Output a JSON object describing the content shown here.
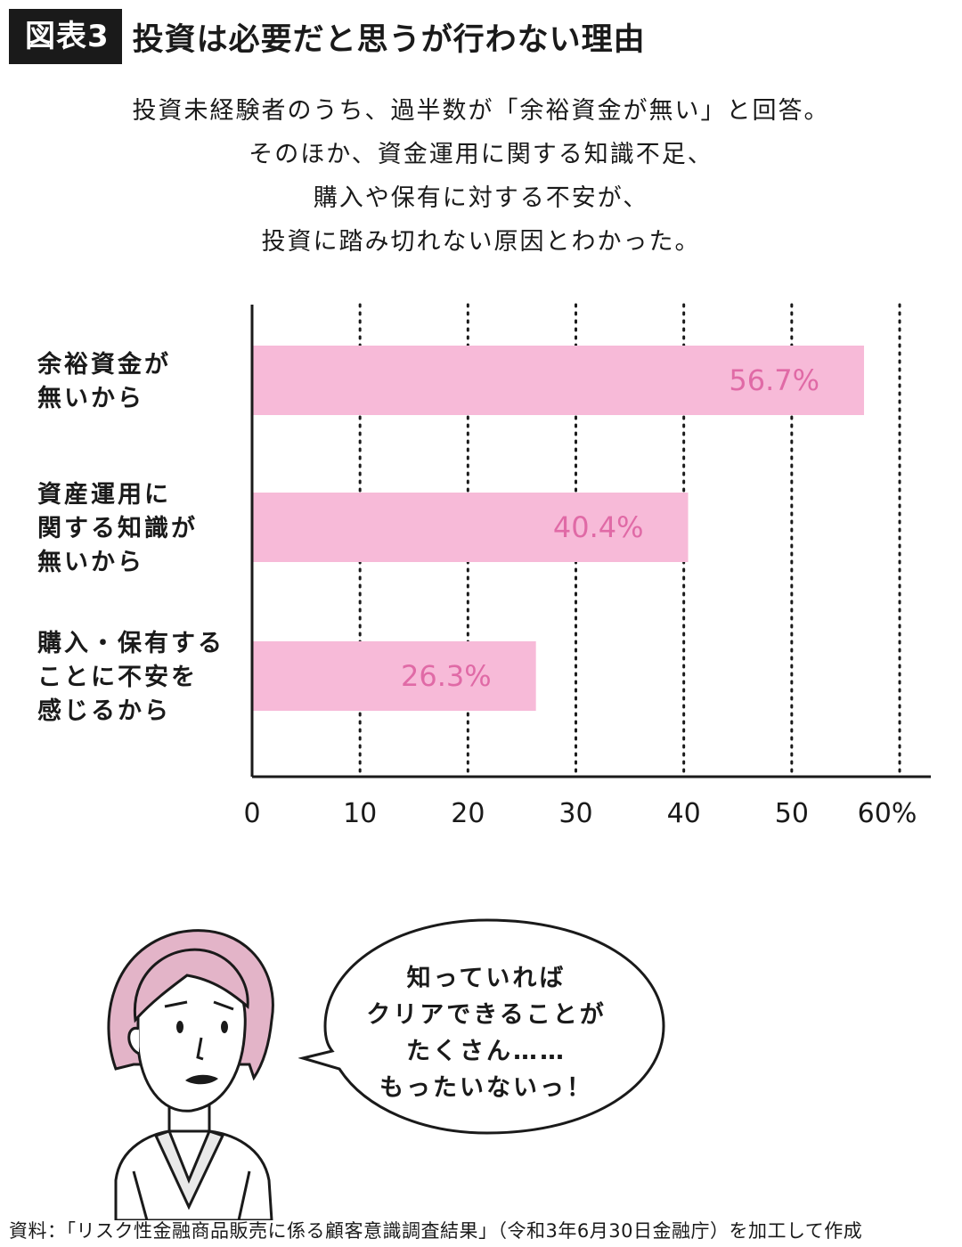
{
  "header": {
    "figure_label": "図表3",
    "title": "投資は必要だと思うが行わない理由"
  },
  "summary": {
    "lines": [
      "投資未経験者のうち、過半数が「余裕資金が無い」と回答。",
      "そのほか、資金運用に関する知識不足、",
      "購入や保有に対する不安が、",
      "投資に踏み切れない原因とわかった。"
    ]
  },
  "chart_data": {
    "type": "bar",
    "orientation": "horizontal",
    "categories": [
      [
        "余裕資金が",
        "無いから"
      ],
      [
        "資産運用に",
        "関する知識が",
        "無いから"
      ],
      [
        "購入・保有する",
        "ことに不安を",
        "感じるから"
      ]
    ],
    "values": [
      56.7,
      40.4,
      26.3
    ],
    "value_labels": [
      "56.7%",
      "40.4%",
      "26.3%"
    ],
    "xlim": [
      0,
      60
    ],
    "xticks": [
      0,
      10,
      20,
      30,
      40,
      50,
      60
    ],
    "xtick_labels": [
      "0",
      "10",
      "20",
      "30",
      "40",
      "50",
      "60%"
    ],
    "grid": "vertical dotted",
    "bar_color": "#f7bad8",
    "value_label_color": "#e06aa6"
  },
  "speech_bubble": {
    "lines": [
      "知っていれば",
      "クリアできることが",
      "たくさん……",
      "もったいないっ！"
    ]
  },
  "source": "資料：「リスク性金融商品販売に係る顧客意識調査結果」（令和3年6月30日金融庁）を加工して作成"
}
